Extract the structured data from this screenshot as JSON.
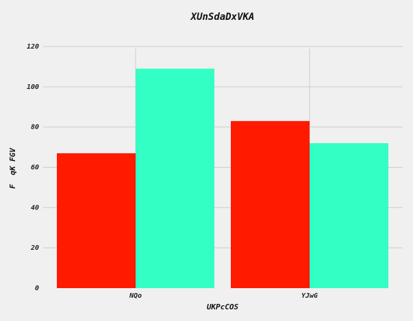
{
  "chart_data": {
    "type": "bar",
    "title": "XUnSdaDxVKA",
    "xlabel": "UKPcCOS",
    "ylabel": "F  qK FGV",
    "categories": [
      "NQo",
      "YJwG"
    ],
    "series": [
      {
        "values": [
          67,
          83
        ],
        "color": "#ff1a00"
      },
      {
        "values": [
          109,
          72
        ],
        "color": "#33ffc4"
      }
    ],
    "ylim": [
      0,
      120
    ],
    "yticks": [
      0,
      20,
      40,
      60,
      80,
      100,
      120
    ],
    "grid": true,
    "background": "#f0f0f0"
  }
}
